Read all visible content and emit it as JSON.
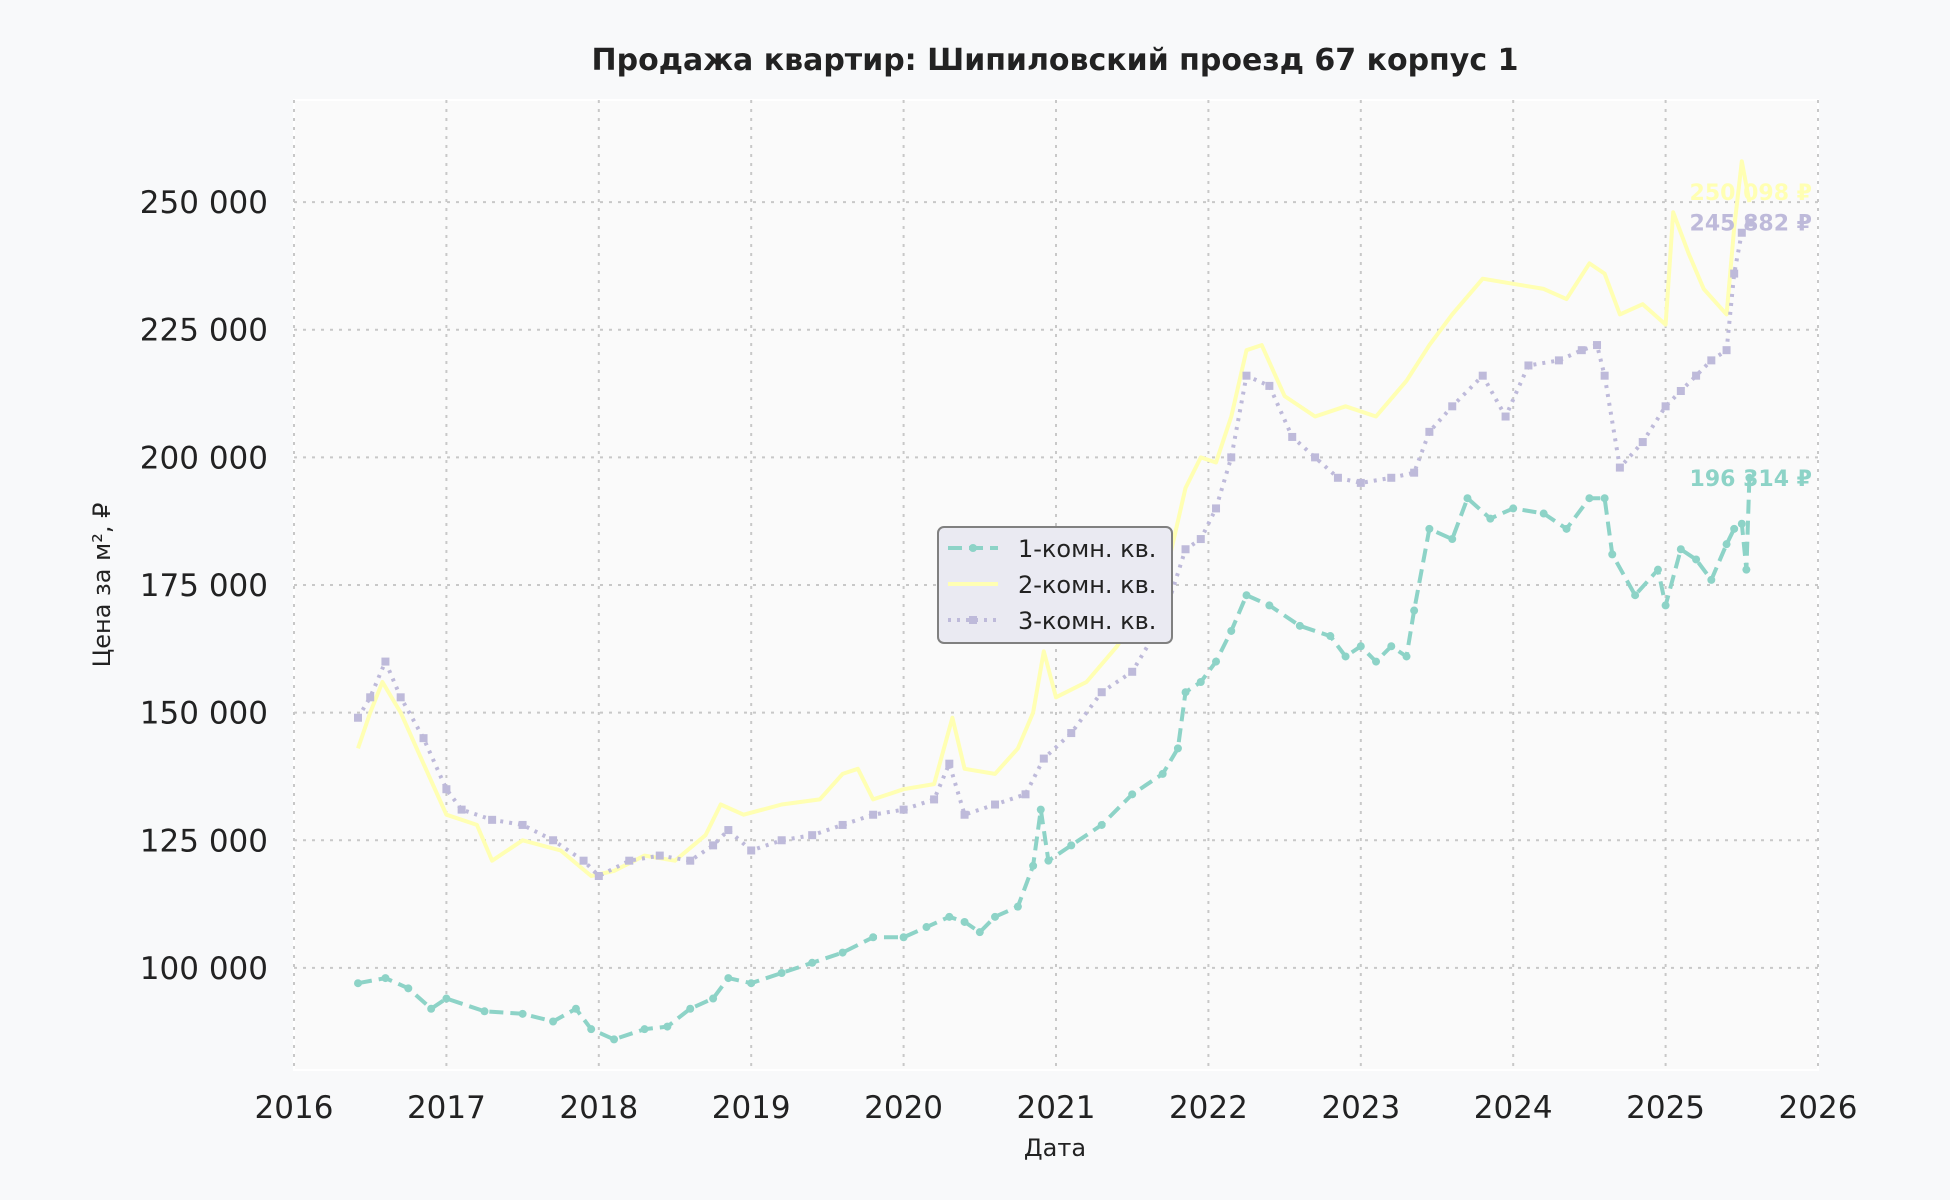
{
  "chart_data": {
    "type": "line",
    "title": "Продажа квартир: Шипиловский проезд 67 корпус 1",
    "xlabel": "Дата",
    "ylabel": "Цена за м², ₽",
    "xlim": [
      2016,
      2026
    ],
    "ylim": [
      80000,
      270000
    ],
    "x_ticks": [
      2016,
      2017,
      2018,
      2019,
      2020,
      2021,
      2022,
      2023,
      2024,
      2025,
      2026
    ],
    "x_tick_labels": [
      "2016",
      "2017",
      "2018",
      "2019",
      "2020",
      "2021",
      "2022",
      "2023",
      "2024",
      "2025",
      "2026"
    ],
    "y_ticks": [
      100000,
      125000,
      150000,
      175000,
      200000,
      225000,
      250000
    ],
    "y_tick_labels": [
      "100 000",
      "125 000",
      "150 000",
      "175 000",
      "200 000",
      "225 000",
      "250 000"
    ],
    "grid": true,
    "legend_position": "center",
    "series": [
      {
        "name": "1-комн. кв.",
        "color": "#8dd3c7",
        "style": "dashed",
        "marker": "circle",
        "end_label": "196 314 ₽",
        "points": [
          [
            2016.42,
            97000
          ],
          [
            2016.6,
            98000
          ],
          [
            2016.75,
            96000
          ],
          [
            2016.9,
            92000
          ],
          [
            2017.0,
            94000
          ],
          [
            2017.25,
            91500
          ],
          [
            2017.5,
            91000
          ],
          [
            2017.7,
            89500
          ],
          [
            2017.85,
            92000
          ],
          [
            2017.95,
            88000
          ],
          [
            2018.1,
            86000
          ],
          [
            2018.3,
            88000
          ],
          [
            2018.45,
            88500
          ],
          [
            2018.6,
            92000
          ],
          [
            2018.75,
            94000
          ],
          [
            2018.85,
            98000
          ],
          [
            2019.0,
            97000
          ],
          [
            2019.2,
            99000
          ],
          [
            2019.4,
            101000
          ],
          [
            2019.6,
            103000
          ],
          [
            2019.8,
            106000
          ],
          [
            2020.0,
            106000
          ],
          [
            2020.15,
            108000
          ],
          [
            2020.3,
            110000
          ],
          [
            2020.4,
            109000
          ],
          [
            2020.5,
            107000
          ],
          [
            2020.6,
            110000
          ],
          [
            2020.75,
            112000
          ],
          [
            2020.85,
            120000
          ],
          [
            2020.9,
            131000
          ],
          [
            2020.95,
            121000
          ],
          [
            2021.1,
            124000
          ],
          [
            2021.3,
            128000
          ],
          [
            2021.5,
            134000
          ],
          [
            2021.7,
            138000
          ],
          [
            2021.8,
            143000
          ],
          [
            2021.85,
            154000
          ],
          [
            2021.95,
            156000
          ],
          [
            2022.05,
            160000
          ],
          [
            2022.15,
            166000
          ],
          [
            2022.25,
            173000
          ],
          [
            2022.4,
            171000
          ],
          [
            2022.6,
            167000
          ],
          [
            2022.8,
            165000
          ],
          [
            2022.9,
            161000
          ],
          [
            2023.0,
            163000
          ],
          [
            2023.1,
            160000
          ],
          [
            2023.2,
            163000
          ],
          [
            2023.3,
            161000
          ],
          [
            2023.35,
            170000
          ],
          [
            2023.45,
            186000
          ],
          [
            2023.6,
            184000
          ],
          [
            2023.7,
            192000
          ],
          [
            2023.85,
            188000
          ],
          [
            2024.0,
            190000
          ],
          [
            2024.2,
            189000
          ],
          [
            2024.35,
            186000
          ],
          [
            2024.5,
            192000
          ],
          [
            2024.6,
            192000
          ],
          [
            2024.65,
            181000
          ],
          [
            2024.8,
            173000
          ],
          [
            2024.95,
            178000
          ],
          [
            2025.0,
            171000
          ],
          [
            2025.1,
            182000
          ],
          [
            2025.2,
            180000
          ],
          [
            2025.3,
            176000
          ],
          [
            2025.4,
            183000
          ],
          [
            2025.45,
            186000
          ],
          [
            2025.5,
            187000
          ],
          [
            2025.53,
            178000
          ],
          [
            2025.55,
            196000
          ]
        ]
      },
      {
        "name": "2-комн. кв.",
        "color": "#ffffb3",
        "style": "solid",
        "marker": "none",
        "end_label": "250 098 ₽",
        "points": [
          [
            2016.42,
            143000
          ],
          [
            2016.5,
            150000
          ],
          [
            2016.58,
            156000
          ],
          [
            2016.7,
            150000
          ],
          [
            2016.85,
            140000
          ],
          [
            2017.0,
            130000
          ],
          [
            2017.2,
            128000
          ],
          [
            2017.3,
            121000
          ],
          [
            2017.5,
            125000
          ],
          [
            2017.75,
            123000
          ],
          [
            2017.95,
            118000
          ],
          [
            2018.1,
            119000
          ],
          [
            2018.3,
            122000
          ],
          [
            2018.5,
            121000
          ],
          [
            2018.7,
            126000
          ],
          [
            2018.8,
            132000
          ],
          [
            2018.95,
            130000
          ],
          [
            2019.2,
            132000
          ],
          [
            2019.45,
            133000
          ],
          [
            2019.6,
            138000
          ],
          [
            2019.7,
            139000
          ],
          [
            2019.8,
            133000
          ],
          [
            2020.0,
            135000
          ],
          [
            2020.2,
            136000
          ],
          [
            2020.32,
            149000
          ],
          [
            2020.4,
            139000
          ],
          [
            2020.6,
            138000
          ],
          [
            2020.75,
            143000
          ],
          [
            2020.85,
            150000
          ],
          [
            2020.92,
            162000
          ],
          [
            2021.0,
            153000
          ],
          [
            2021.2,
            156000
          ],
          [
            2021.4,
            163000
          ],
          [
            2021.6,
            172000
          ],
          [
            2021.75,
            181000
          ],
          [
            2021.85,
            194000
          ],
          [
            2021.95,
            200000
          ],
          [
            2022.05,
            199000
          ],
          [
            2022.15,
            208000
          ],
          [
            2022.25,
            221000
          ],
          [
            2022.35,
            222000
          ],
          [
            2022.5,
            212000
          ],
          [
            2022.7,
            208000
          ],
          [
            2022.9,
            210000
          ],
          [
            2023.1,
            208000
          ],
          [
            2023.3,
            215000
          ],
          [
            2023.45,
            222000
          ],
          [
            2023.6,
            228000
          ],
          [
            2023.8,
            235000
          ],
          [
            2024.0,
            234000
          ],
          [
            2024.2,
            233000
          ],
          [
            2024.35,
            231000
          ],
          [
            2024.5,
            238000
          ],
          [
            2024.6,
            236000
          ],
          [
            2024.7,
            228000
          ],
          [
            2024.85,
            230000
          ],
          [
            2025.0,
            226000
          ],
          [
            2025.05,
            248000
          ],
          [
            2025.15,
            240000
          ],
          [
            2025.25,
            233000
          ],
          [
            2025.4,
            228000
          ],
          [
            2025.45,
            245000
          ],
          [
            2025.5,
            258000
          ],
          [
            2025.55,
            250000
          ]
        ]
      },
      {
        "name": "3-комн. кв.",
        "color": "#bebada",
        "style": "dotted",
        "marker": "square",
        "end_label": "245 882 ₽",
        "points": [
          [
            2016.42,
            149000
          ],
          [
            2016.5,
            153000
          ],
          [
            2016.6,
            160000
          ],
          [
            2016.7,
            153000
          ],
          [
            2016.85,
            145000
          ],
          [
            2017.0,
            135000
          ],
          [
            2017.1,
            131000
          ],
          [
            2017.3,
            129000
          ],
          [
            2017.5,
            128000
          ],
          [
            2017.7,
            125000
          ],
          [
            2017.9,
            121000
          ],
          [
            2018.0,
            118000
          ],
          [
            2018.2,
            121000
          ],
          [
            2018.4,
            122000
          ],
          [
            2018.6,
            121000
          ],
          [
            2018.75,
            124000
          ],
          [
            2018.85,
            127000
          ],
          [
            2019.0,
            123000
          ],
          [
            2019.2,
            125000
          ],
          [
            2019.4,
            126000
          ],
          [
            2019.6,
            128000
          ],
          [
            2019.8,
            130000
          ],
          [
            2020.0,
            131000
          ],
          [
            2020.2,
            133000
          ],
          [
            2020.3,
            140000
          ],
          [
            2020.4,
            130000
          ],
          [
            2020.6,
            132000
          ],
          [
            2020.8,
            134000
          ],
          [
            2020.92,
            141000
          ],
          [
            2021.1,
            146000
          ],
          [
            2021.3,
            154000
          ],
          [
            2021.5,
            158000
          ],
          [
            2021.7,
            168000
          ],
          [
            2021.85,
            182000
          ],
          [
            2021.95,
            184000
          ],
          [
            2022.05,
            190000
          ],
          [
            2022.15,
            200000
          ],
          [
            2022.25,
            216000
          ],
          [
            2022.4,
            214000
          ],
          [
            2022.55,
            204000
          ],
          [
            2022.7,
            200000
          ],
          [
            2022.85,
            196000
          ],
          [
            2023.0,
            195000
          ],
          [
            2023.2,
            196000
          ],
          [
            2023.35,
            197000
          ],
          [
            2023.45,
            205000
          ],
          [
            2023.6,
            210000
          ],
          [
            2023.8,
            216000
          ],
          [
            2023.95,
            208000
          ],
          [
            2024.1,
            218000
          ],
          [
            2024.3,
            219000
          ],
          [
            2024.45,
            221000
          ],
          [
            2024.55,
            222000
          ],
          [
            2024.6,
            216000
          ],
          [
            2024.7,
            198000
          ],
          [
            2024.85,
            203000
          ],
          [
            2025.0,
            210000
          ],
          [
            2025.1,
            213000
          ],
          [
            2025.2,
            216000
          ],
          [
            2025.3,
            219000
          ],
          [
            2025.4,
            221000
          ],
          [
            2025.45,
            236000
          ],
          [
            2025.5,
            244000
          ],
          [
            2025.55,
            246000
          ]
        ]
      }
    ]
  }
}
